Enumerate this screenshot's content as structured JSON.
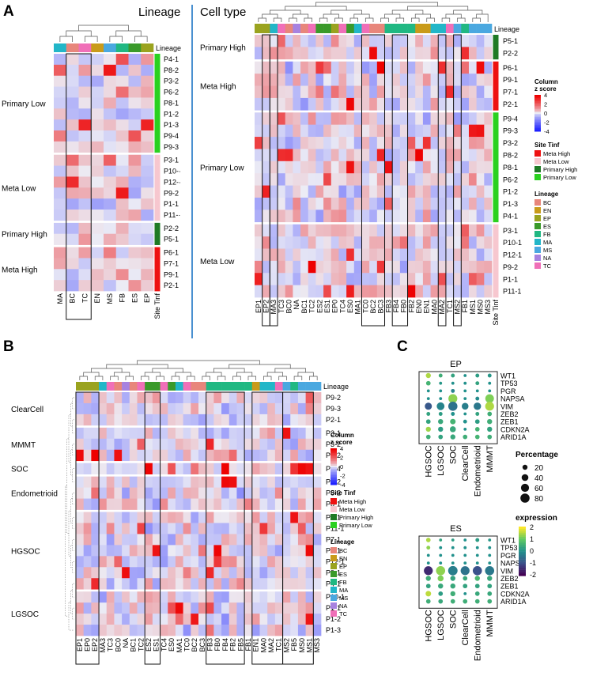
{
  "colors": {
    "heat_low": "#1e22ff",
    "heat_mid": "#ececf5",
    "heat_high": "#ee0000",
    "site": {
      "Meta High": "#ee1111",
      "Meta Low": "#f7c7cf",
      "Primary High": "#1f7a25",
      "Primary Low": "#2ad11f"
    },
    "lineage": {
      "BC": "#e8867b",
      "EN": "#c99b1a",
      "EP": "#9aa31f",
      "ES": "#3a9a2a",
      "FB": "#20b882",
      "MA": "#22b6c8",
      "MS": "#4aa8e0",
      "NA": "#a782e0",
      "TC": "#f06fb8"
    },
    "divider": "#4a90d0"
  },
  "chart_data": [
    {
      "panel": "A",
      "type": "heatmap",
      "title": "Lineage",
      "columns": [
        "MA",
        "BC",
        "TC",
        "EN",
        "MS",
        "FB",
        "ES",
        "EP"
      ],
      "column_lineage": [
        "MA",
        "BC",
        "TC",
        "EN",
        "MS",
        "FB",
        "ES",
        "EP"
      ],
      "column_lineage_label": "Lineage",
      "row_annotation_label": "Site Tinf",
      "row_groups": [
        {
          "name": "Primary Low",
          "site": "Primary Low",
          "rows": [
            "P4-1",
            "P8-2",
            "P3-2",
            "P6-2",
            "P8-1",
            "P1-2",
            "P1-3",
            "P9-4",
            "P9-3"
          ]
        },
        {
          "name": "Meta Low",
          "site": "Meta Low",
          "rows": [
            "P3-1",
            "P10-·",
            "P12-·",
            "P9-2",
            "P1-1",
            "P11-·"
          ]
        },
        {
          "name": "Primary High",
          "site": "Primary High",
          "rows": [
            "P2-2",
            "P5-1"
          ]
        },
        {
          "name": "Meta High",
          "site": "Meta High",
          "rows": [
            "P6-1",
            "P7-1",
            "P9-1",
            "P2-1"
          ]
        }
      ],
      "boxed_columns": [
        [
          "BC",
          "TC"
        ]
      ]
    },
    {
      "panel": "A",
      "type": "heatmap",
      "title": "Cell type",
      "columns": [
        "EP1",
        "EP2",
        "MA3",
        "TC3",
        "BC0",
        "NA",
        "BC1",
        "TC2",
        "ES2",
        "ES1",
        "EP0",
        "TC4",
        "ES0",
        "MA1",
        "TC0",
        "BC2",
        "BC3",
        "FB3",
        "FB4",
        "FB0",
        "FB2",
        "EN0",
        "EN1",
        "MA0",
        "MA2",
        "TC1",
        "MS2",
        "FB1",
        "MS1",
        "MS0",
        "MS3"
      ],
      "column_lineage": [
        "EP",
        "EP",
        "MA",
        "TC",
        "BC",
        "NA",
        "BC",
        "TC",
        "ES",
        "ES",
        "EP",
        "TC",
        "ES",
        "MA",
        "TC",
        "BC",
        "BC",
        "FB",
        "FB",
        "FB",
        "FB",
        "EN",
        "EN",
        "MA",
        "MA",
        "TC",
        "MS",
        "FB",
        "MS",
        "MS",
        "MS"
      ],
      "column_lineage_label": "Lineage",
      "row_annotation_label": "Site Tinf",
      "row_groups": [
        {
          "name": "Primary High",
          "site": "Primary High",
          "rows": [
            "P5-1",
            "P2-2"
          ]
        },
        {
          "name": "Meta High",
          "site": "Meta High",
          "rows": [
            "P6-1",
            "P9-1",
            "P7-1",
            "P2-1"
          ]
        },
        {
          "name": "Primary Low",
          "site": "Primary Low",
          "rows": [
            "P9-4",
            "P9-3",
            "P3-2",
            "P8-2",
            "P8-1",
            "P6-2",
            "P1-2",
            "P1-3",
            "P4-1"
          ]
        },
        {
          "name": "Meta Low",
          "site": "Meta Low",
          "rows": [
            "P3-1",
            "P10-1",
            "P12-1",
            "P9-2",
            "P1-1",
            "P11-1"
          ]
        }
      ],
      "boxed_columns": [
        [
          "EP2"
        ],
        [
          "MA3"
        ],
        [
          "TC0",
          "BC2",
          "BC3"
        ],
        [
          "FB4",
          "FB0"
        ],
        [
          "MA2"
        ],
        [
          "MS2"
        ]
      ]
    },
    {
      "panel": "B",
      "type": "heatmap",
      "columns": [
        "EP1",
        "EP0",
        "EP2",
        "MA3",
        "TC3",
        "BC0",
        "NA",
        "BC1",
        "TC2",
        "ES2",
        "ES1",
        "TC4",
        "ES0",
        "MA1",
        "TC0",
        "BC2",
        "BC3",
        "FB3",
        "FB0",
        "FB4",
        "FB2",
        "FB5",
        "FB1",
        "EN1",
        "MA0",
        "MA2",
        "TC1",
        "MS2",
        "FB5",
        "MS0",
        "MS1",
        "MS3"
      ],
      "column_lineage": [
        "EP",
        "EP",
        "EP",
        "MA",
        "TC",
        "BC",
        "NA",
        "BC",
        "TC",
        "ES",
        "ES",
        "TC",
        "ES",
        "MA",
        "TC",
        "BC",
        "BC",
        "FB",
        "FB",
        "FB",
        "FB",
        "FB",
        "FB",
        "EN",
        "MA",
        "MA",
        "TC",
        "MS",
        "FB",
        "MS",
        "MS",
        "MS"
      ],
      "column_lineage_label": "Lineage",
      "row_groups": [
        {
          "name": "ClearCell",
          "rows": [
            "P9-2",
            "P9-3",
            "P2-1"
          ]
        },
        {
          "name": "MMMT",
          "rows": [
            "P3-1",
            "P3-2",
            "P2-2"
          ]
        },
        {
          "name": "SOC",
          "rows": [
            "P9-4"
          ]
        },
        {
          "name": "Endometrioid",
          "rows": [
            "P6-2",
            "P8-2",
            "P8-1"
          ]
        },
        {
          "name": "HGSOC",
          "rows": [
            "P6-1",
            "P11-1",
            "P7-1",
            "P5-1",
            "P12-1",
            "P9-1",
            "P4-1"
          ]
        },
        {
          "name": "LGSOC",
          "rows": [
            "P10-1",
            "P1-1",
            "P1-2",
            "P1-3"
          ]
        }
      ],
      "boxed_columns": [
        [
          "EP1",
          "EP0",
          "EP2"
        ],
        [
          "ES2",
          "ES1"
        ],
        [
          "FB3",
          "FB0",
          "FB4",
          "FB2",
          "FB5"
        ],
        [
          "EN1",
          "MA0",
          "MA2",
          "TC1"
        ],
        [
          "MS2",
          "FB5",
          "MS0",
          "MS1"
        ]
      ]
    },
    {
      "panel": "C",
      "type": "dotplot",
      "subplots": [
        {
          "title": "EP",
          "x": [
            "HGSOC",
            "LGSOC",
            "SOC",
            "ClearCell",
            "Endometrioid",
            "MMMT"
          ],
          "genes": [
            "WT1",
            "TP53",
            "PGR",
            "NAPSA",
            "VIM",
            "ZEB2",
            "ZEB1",
            "CDKN2A",
            "ARID1A"
          ],
          "expression": [
            [
              1.5,
              0.5,
              0.3,
              0.0,
              0.2,
              0.1
            ],
            [
              0.6,
              0.1,
              0.0,
              0.0,
              0.3,
              0.0
            ],
            [
              0.0,
              0.0,
              -0.2,
              0.0,
              0.0,
              0.0
            ],
            [
              0.0,
              0.0,
              1.3,
              0.0,
              -0.1,
              1.2
            ],
            [
              -0.9,
              -0.2,
              -0.5,
              -0.3,
              -0.4,
              1.5
            ],
            [
              0.3,
              0.2,
              0.0,
              0.0,
              0.3,
              0.5
            ],
            [
              0.3,
              0.4,
              0.6,
              0.0,
              0.2,
              0.5
            ],
            [
              1.4,
              0.2,
              0.4,
              0.0,
              0.6,
              0.3
            ],
            [
              0.5,
              0.3,
              0.4,
              0.5,
              0.6,
              0.5
            ]
          ],
          "percentage": [
            [
              20,
              10,
              10,
              5,
              10,
              10
            ],
            [
              15,
              5,
              5,
              5,
              10,
              5
            ],
            [
              5,
              5,
              10,
              5,
              5,
              5
            ],
            [
              5,
              5,
              75,
              5,
              10,
              70
            ],
            [
              45,
              55,
              80,
              40,
              50,
              75
            ],
            [
              10,
              10,
              10,
              5,
              10,
              15
            ],
            [
              15,
              20,
              25,
              10,
              15,
              20
            ],
            [
              20,
              20,
              30,
              5,
              15,
              20
            ],
            [
              15,
              15,
              20,
              15,
              15,
              15
            ]
          ]
        },
        {
          "title": "ES",
          "x": [
            "HGSOC",
            "LGSOC",
            "SOC",
            "ClearCell",
            "Endometrioid",
            "MMMT"
          ],
          "genes": [
            "WT1",
            "TP53",
            "PGR",
            "NAPSA",
            "VIM",
            "ZEB2",
            "ZEB1",
            "CDKN2A",
            "ARID1A"
          ],
          "expression": [
            [
              1.5,
              0.3,
              0.2,
              0.0,
              0.2,
              0.1
            ],
            [
              1.3,
              0.0,
              0.0,
              0.0,
              0.0,
              0.0
            ],
            [
              0.0,
              0.0,
              0.0,
              0.0,
              0.0,
              0.0
            ],
            [
              0.0,
              0.0,
              0.0,
              0.0,
              0.0,
              0.0
            ],
            [
              -1.5,
              1.3,
              -0.3,
              -0.5,
              -1.0,
              -0.4
            ],
            [
              0.5,
              1.2,
              0.3,
              0.4,
              0.7,
              0.4
            ],
            [
              0.3,
              0.4,
              0.4,
              0.3,
              0.3,
              0.3
            ],
            [
              1.6,
              0.2,
              0.5,
              0.0,
              0.4,
              0.4
            ],
            [
              0.5,
              0.4,
              0.5,
              0.5,
              0.5,
              0.5
            ]
          ],
          "percentage": [
            [
              15,
              5,
              5,
              5,
              10,
              5
            ],
            [
              10,
              5,
              5,
              5,
              5,
              5
            ],
            [
              5,
              5,
              5,
              5,
              5,
              5
            ],
            [
              5,
              5,
              5,
              5,
              5,
              5
            ],
            [
              75,
              80,
              85,
              75,
              80,
              80
            ],
            [
              20,
              30,
              20,
              15,
              20,
              20
            ],
            [
              15,
              20,
              20,
              15,
              15,
              15
            ],
            [
              25,
              15,
              20,
              5,
              15,
              15
            ],
            [
              15,
              15,
              15,
              15,
              15,
              15
            ]
          ]
        }
      ],
      "size_legend": {
        "title": "Percentage",
        "values": [
          20,
          40,
          60,
          80
        ]
      },
      "color_legend": {
        "title": "expression",
        "ticks": [
          2,
          1,
          0,
          -1,
          -2
        ]
      }
    }
  ],
  "heat_legend": {
    "title_line1": "Column",
    "title_line2": "z score",
    "ticks": [
      4,
      2,
      0,
      -2,
      -4
    ]
  },
  "site_legend": {
    "title": "Site Tinf",
    "entries": [
      "Meta High",
      "Meta Low",
      "Primary High",
      "Primary Low"
    ]
  },
  "lineage_legend": {
    "title": "Lineage",
    "entries": [
      "BC",
      "EN",
      "EP",
      "ES",
      "FB",
      "MA",
      "MS",
      "NA",
      "TC"
    ]
  },
  "panel_labels": [
    "A",
    "B",
    "C"
  ]
}
